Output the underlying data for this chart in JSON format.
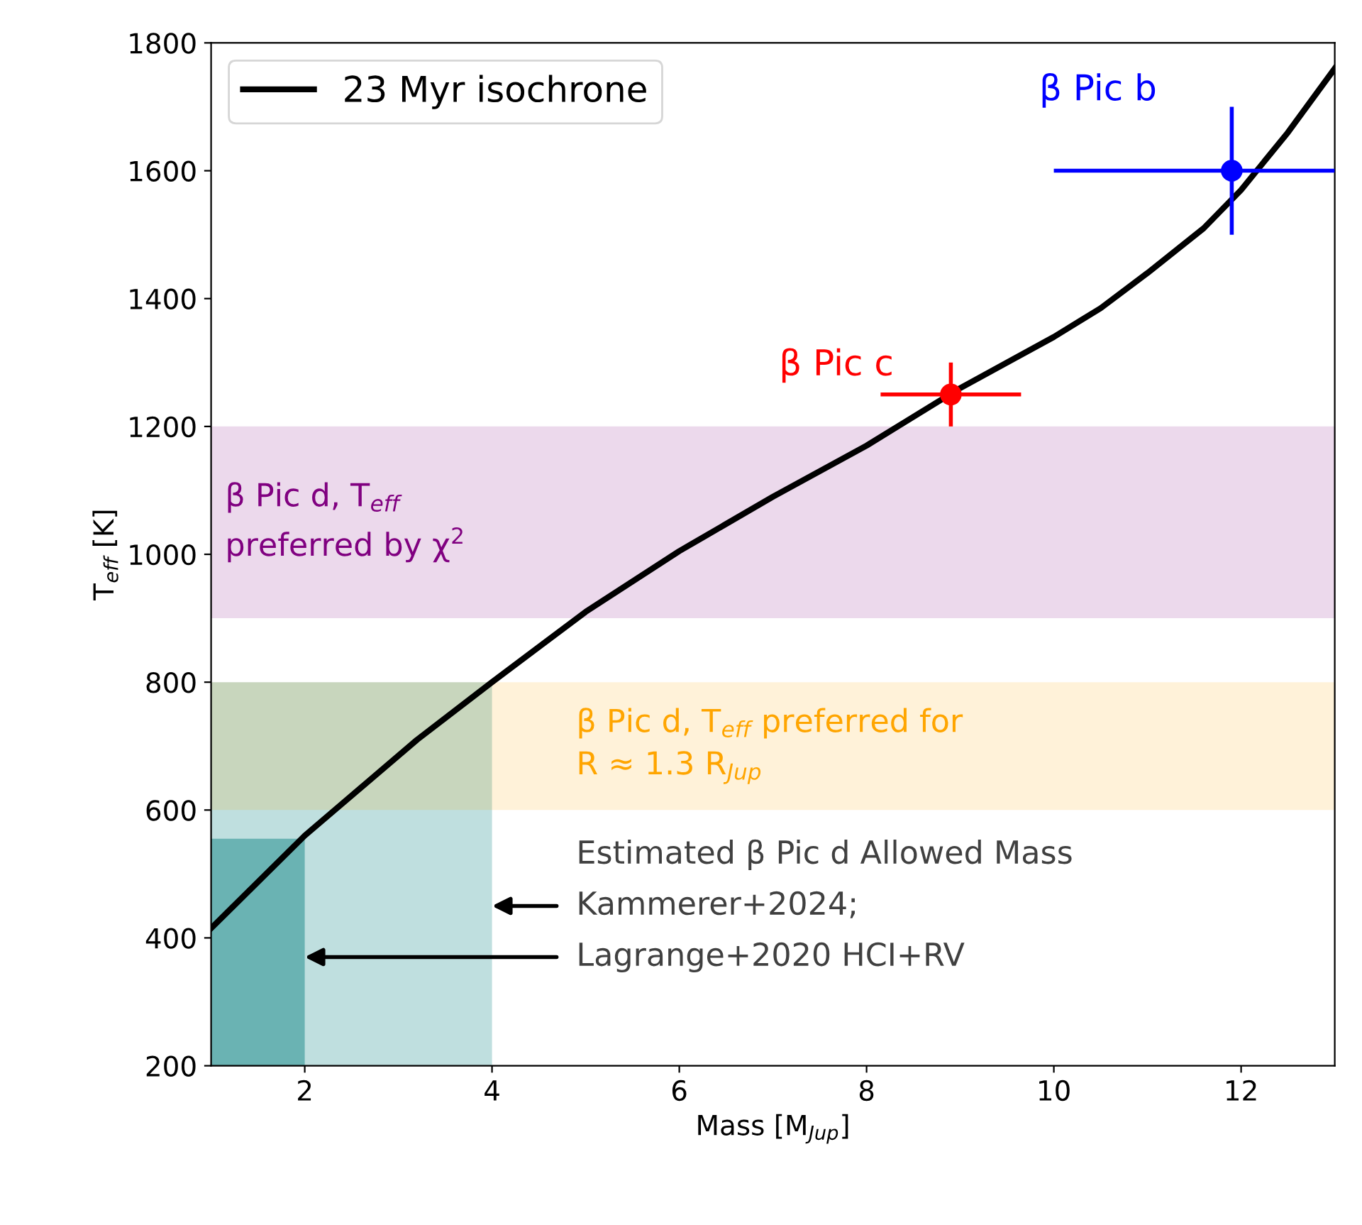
{
  "chart_data": {
    "type": "line",
    "xlabel": "Mass [M$_{Jup}$]",
    "ylabel": "T$_{eff}$ [K]",
    "xlim": [
      1,
      13
    ],
    "xticks": [
      2,
      4,
      6,
      8,
      10,
      12
    ],
    "ylim": [
      200,
      1800
    ],
    "yticks": [
      200,
      400,
      600,
      800,
      1000,
      1200,
      1400,
      1600,
      1800
    ],
    "grid": false,
    "legend": "top left",
    "series": [
      {
        "type": "area",
        "color": "#bfdfdf",
        "x": [
          1,
          4
        ],
        "values": [
          800,
          800
        ]
      },
      {
        "type": "area",
        "color": "#6ab3b3",
        "x": [
          1,
          2
        ],
        "values": [
          555,
          555
        ]
      },
      {
        "name": "23 Myr isochrone",
        "color": "#000000",
        "x": [
          1,
          2,
          3.2,
          4,
          5,
          6,
          7,
          8,
          9,
          10,
          10.5,
          11,
          11.6,
          12,
          12.5,
          13
        ],
        "values": [
          415,
          560,
          710,
          800,
          910,
          1005,
          1090,
          1170,
          1260,
          1340,
          1385,
          1440,
          1510,
          1570,
          1660,
          1760
        ]
      },
      {
        "type": "scatter",
        "name": "β Pic c",
        "color": "#ff0000",
        "x": [
          8.9
        ],
        "values": [
          1250
        ],
        "errors": [
          50
        ],
        "xerrors": [
          0.75
        ]
      },
      {
        "type": "scatter",
        "name": "β Pic b",
        "color": "#0000ff",
        "x": [
          11.9
        ],
        "values": [
          1600
        ],
        "errors": [
          100
        ],
        "xerrors": [
          [
            10.0,
            13.0
          ]
        ]
      }
    ],
    "bands": [
      {
        "axis": "y",
        "from": 900,
        "to": 1200,
        "label": "β Pic d, T$_{eff}$\npreferred by χ$^{2}$",
        "color": "#800080"
      },
      {
        "axis": "y",
        "from": 600,
        "to": 800,
        "label": "β Pic d, T$_{eff}$ preferred for\nR ≈ 1.3 R$_{Jup}$",
        "color": "#ffa500"
      }
    ],
    "annotations": [
      "Estimated β Pic d Allowed Mass",
      {
        "text": "Kammerer+2024;",
        "x": 4,
        "y": 450
      },
      {
        "text": "Lagrange+2020 HCI+RV",
        "x": 2,
        "y": 370
      }
    ]
  }
}
